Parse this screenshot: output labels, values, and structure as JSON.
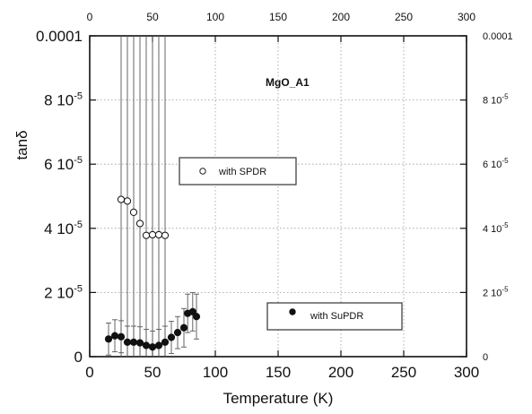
{
  "chart_data": {
    "type": "scatter",
    "title": "MgO_A1",
    "xlabel": "Temperature (K)",
    "ylabel": "tanδ",
    "xlim": [
      0,
      300
    ],
    "ylim": [
      0,
      0.0001
    ],
    "grid": true,
    "x_ticks": [
      "0",
      "50",
      "100",
      "150",
      "200",
      "250",
      "300"
    ],
    "x_ticks_top": [
      "0",
      "50",
      "100",
      "150",
      "200",
      "250",
      "300"
    ],
    "y_ticks": [
      {
        "value": 0,
        "base": "0",
        "exp": ""
      },
      {
        "value": 2e-05,
        "base": "2 10",
        "exp": "-5"
      },
      {
        "value": 4e-05,
        "base": "4 10",
        "exp": "-5"
      },
      {
        "value": 6e-05,
        "base": "6 10",
        "exp": "-5"
      },
      {
        "value": 8e-05,
        "base": "8 10",
        "exp": "-5"
      },
      {
        "value": 0.0001,
        "base": "0.0001",
        "exp": ""
      }
    ],
    "y_ticks_right": [
      {
        "value": 0,
        "base": "0",
        "exp": ""
      },
      {
        "value": 2e-05,
        "base": "2 10",
        "exp": "-5"
      },
      {
        "value": 4e-05,
        "base": "4 10",
        "exp": "-5"
      },
      {
        "value": 6e-05,
        "base": "6 10",
        "exp": "-5"
      },
      {
        "value": 8e-05,
        "base": "8 10",
        "exp": "-5"
      },
      {
        "value": 0.0001,
        "base": "0.0001",
        "exp": ""
      }
    ],
    "series": [
      {
        "name": "with SPDR",
        "marker": "open-circle",
        "color": "#111111",
        "points": [
          {
            "x": 25,
            "y": 4.9e-05,
            "err": 0.0001
          },
          {
            "x": 30,
            "y": 4.85e-05,
            "err": 0.0001
          },
          {
            "x": 35,
            "y": 4.5e-05,
            "err": 0.0001
          },
          {
            "x": 40,
            "y": 4.15e-05,
            "err": 0.0001
          },
          {
            "x": 45,
            "y": 3.78e-05,
            "err": 0.0001
          },
          {
            "x": 50,
            "y": 3.8e-05,
            "err": 0.0001
          },
          {
            "x": 55,
            "y": 3.8e-05,
            "err": 0.0001
          },
          {
            "x": 60,
            "y": 3.78e-05,
            "err": 0.0001
          }
        ]
      },
      {
        "name": "with SuPDR",
        "marker": "filled-circle",
        "color": "#111111",
        "points": [
          {
            "x": 15,
            "y": 5.5e-06,
            "err": 5e-06
          },
          {
            "x": 20,
            "y": 6.5e-06,
            "err": 5e-06
          },
          {
            "x": 25,
            "y": 6.2e-06,
            "err": 5e-06
          },
          {
            "x": 30,
            "y": 4.5e-06,
            "err": 5e-06
          },
          {
            "x": 35,
            "y": 4.5e-06,
            "err": 5e-06
          },
          {
            "x": 40,
            "y": 4.3e-06,
            "err": 5e-06
          },
          {
            "x": 45,
            "y": 3.5e-06,
            "err": 5e-06
          },
          {
            "x": 50,
            "y": 3e-06,
            "err": 5e-06
          },
          {
            "x": 55,
            "y": 3.5e-06,
            "err": 5e-06
          },
          {
            "x": 60,
            "y": 4.5e-06,
            "err": 5e-06
          },
          {
            "x": 65,
            "y": 6e-06,
            "err": 5e-06
          },
          {
            "x": 70,
            "y": 7.5e-06,
            "err": 5e-06
          },
          {
            "x": 75,
            "y": 9e-06,
            "err": 6e-06
          },
          {
            "x": 78,
            "y": 1.35e-05,
            "err": 6e-06
          },
          {
            "x": 82,
            "y": 1.4e-05,
            "err": 6e-06
          },
          {
            "x": 85,
            "y": 1.25e-05,
            "err": 7e-06
          }
        ]
      }
    ],
    "annotations": [
      "MgO_A1"
    ]
  }
}
